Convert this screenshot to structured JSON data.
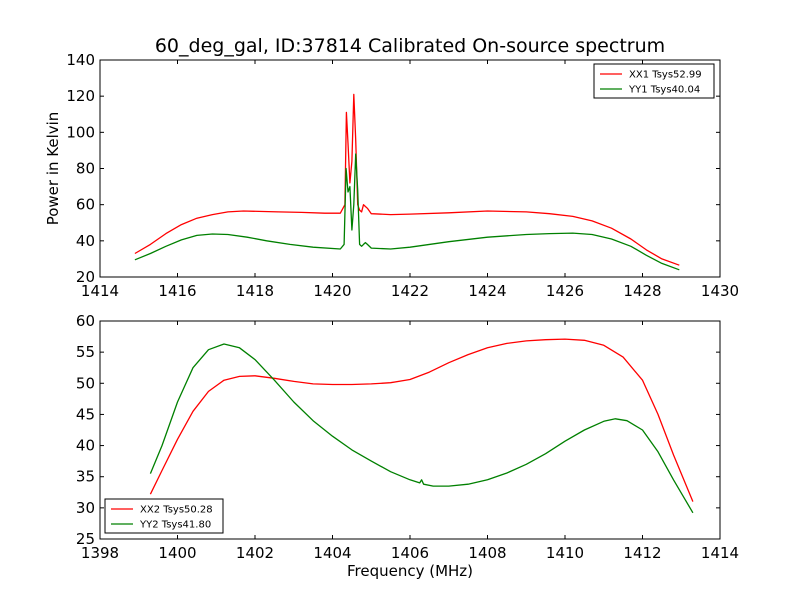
{
  "chart_data": [
    {
      "type": "line",
      "title": "60_deg_gal, ID:37814 Calibrated On-source spectrum",
      "xlabel": "",
      "ylabel": "Power in Kelvin",
      "xlim": [
        1414,
        1430
      ],
      "ylim": [
        20,
        140
      ],
      "xticks": [
        "1414",
        "1416",
        "1418",
        "1420",
        "1422",
        "1424",
        "1426",
        "1428",
        "1430"
      ],
      "yticks": [
        "20",
        "40",
        "60",
        "80",
        "100",
        "120",
        "140"
      ],
      "legend_position": "top-right",
      "grid": false,
      "series": [
        {
          "name": "XX1 Tsys52.99",
          "color": "#ff0000",
          "x": [
            1414.9,
            1415.3,
            1415.7,
            1416.1,
            1416.5,
            1416.9,
            1417.3,
            1417.7,
            1418.1,
            1418.6,
            1419.2,
            1419.8,
            1420.2,
            1420.32,
            1420.36,
            1420.4,
            1420.45,
            1420.5,
            1420.55,
            1420.6,
            1420.65,
            1420.7,
            1420.75,
            1420.8,
            1420.85,
            1420.9,
            1421.0,
            1421.5,
            1422.0,
            1423.0,
            1424.0,
            1425.0,
            1425.6,
            1426.2,
            1426.7,
            1427.2,
            1427.7,
            1428.1,
            1428.5,
            1428.95
          ],
          "y": [
            33,
            38,
            44,
            49,
            52.5,
            54.5,
            56,
            56.5,
            56.3,
            56,
            55.7,
            55.3,
            55.3,
            60,
            111,
            94,
            72,
            84,
            121,
            96,
            60,
            57,
            56,
            60,
            59,
            58,
            55,
            54.5,
            54.8,
            55.5,
            56.5,
            56,
            55,
            53.5,
            51,
            47,
            41,
            35,
            30,
            26.5
          ]
        },
        {
          "name": "YY1 Tsys40.04",
          "color": "#008000",
          "x": [
            1414.9,
            1415.3,
            1415.7,
            1416.1,
            1416.5,
            1416.9,
            1417.3,
            1417.8,
            1418.3,
            1418.9,
            1419.5,
            1420.2,
            1420.3,
            1420.35,
            1420.4,
            1420.45,
            1420.5,
            1420.55,
            1420.6,
            1420.65,
            1420.7,
            1420.75,
            1420.8,
            1420.85,
            1420.9,
            1421.0,
            1421.5,
            1422.0,
            1423.0,
            1424.0,
            1425.0,
            1425.6,
            1426.2,
            1426.7,
            1427.2,
            1427.7,
            1428.1,
            1428.5,
            1428.95
          ],
          "y": [
            29.5,
            33,
            37,
            40.5,
            43,
            43.8,
            43.5,
            42,
            40,
            38,
            36.5,
            35.5,
            38,
            80,
            67,
            70,
            46,
            60,
            88,
            68,
            38,
            37,
            38,
            39,
            38,
            36,
            35.5,
            36.5,
            39.5,
            42,
            43.5,
            44,
            44.3,
            43.5,
            41,
            37,
            32,
            27.5,
            24
          ]
        }
      ]
    },
    {
      "type": "line",
      "title": "",
      "xlabel": "Frequency (MHz)",
      "ylabel": "",
      "xlim": [
        1398,
        1414
      ],
      "ylim": [
        25,
        60
      ],
      "xticks": [
        "1398",
        "1400",
        "1402",
        "1404",
        "1406",
        "1408",
        "1410",
        "1412",
        "1414"
      ],
      "yticks": [
        "25",
        "30",
        "35",
        "40",
        "45",
        "50",
        "55",
        "60"
      ],
      "legend_position": "bottom-left",
      "grid": false,
      "series": [
        {
          "name": "XX2 Tsys50.28",
          "color": "#ff0000",
          "x": [
            1399.3,
            1399.6,
            1400.0,
            1400.4,
            1400.8,
            1401.2,
            1401.6,
            1402.0,
            1402.5,
            1403.0,
            1403.5,
            1404.0,
            1404.5,
            1405.0,
            1405.5,
            1406.0,
            1406.5,
            1407.0,
            1407.5,
            1408.0,
            1408.5,
            1409.0,
            1409.5,
            1410.0,
            1410.5,
            1411.0,
            1411.5,
            1412.0,
            1412.4,
            1412.8,
            1413.3
          ],
          "y": [
            32.2,
            36,
            41,
            45.5,
            48.7,
            50.5,
            51.1,
            51.2,
            50.8,
            50.3,
            49.9,
            49.8,
            49.8,
            49.9,
            50.1,
            50.6,
            51.8,
            53.3,
            54.6,
            55.7,
            56.4,
            56.8,
            57,
            57.1,
            56.9,
            56.1,
            54.2,
            50.5,
            45,
            38.5,
            31
          ]
        },
        {
          "name": "YY2 Tsys41.80",
          "color": "#008000",
          "x": [
            1399.3,
            1399.6,
            1400.0,
            1400.4,
            1400.8,
            1401.2,
            1401.6,
            1402.0,
            1402.5,
            1403.0,
            1403.5,
            1404.0,
            1404.5,
            1405.0,
            1405.5,
            1406.0,
            1406.25,
            1406.3,
            1406.35,
            1406.6,
            1407.0,
            1407.5,
            1408.0,
            1408.5,
            1409.0,
            1409.5,
            1410.0,
            1410.5,
            1411.0,
            1411.3,
            1411.6,
            1412.0,
            1412.4,
            1412.8,
            1413.3
          ],
          "y": [
            35.5,
            40,
            47,
            52.5,
            55.4,
            56.3,
            55.7,
            53.8,
            50.5,
            47,
            44,
            41.5,
            39.3,
            37.5,
            35.8,
            34.5,
            34,
            34.5,
            33.8,
            33.5,
            33.5,
            33.8,
            34.5,
            35.6,
            37,
            38.7,
            40.7,
            42.5,
            43.9,
            44.3,
            44,
            42.5,
            39,
            34.5,
            29.2
          ]
        }
      ]
    }
  ]
}
